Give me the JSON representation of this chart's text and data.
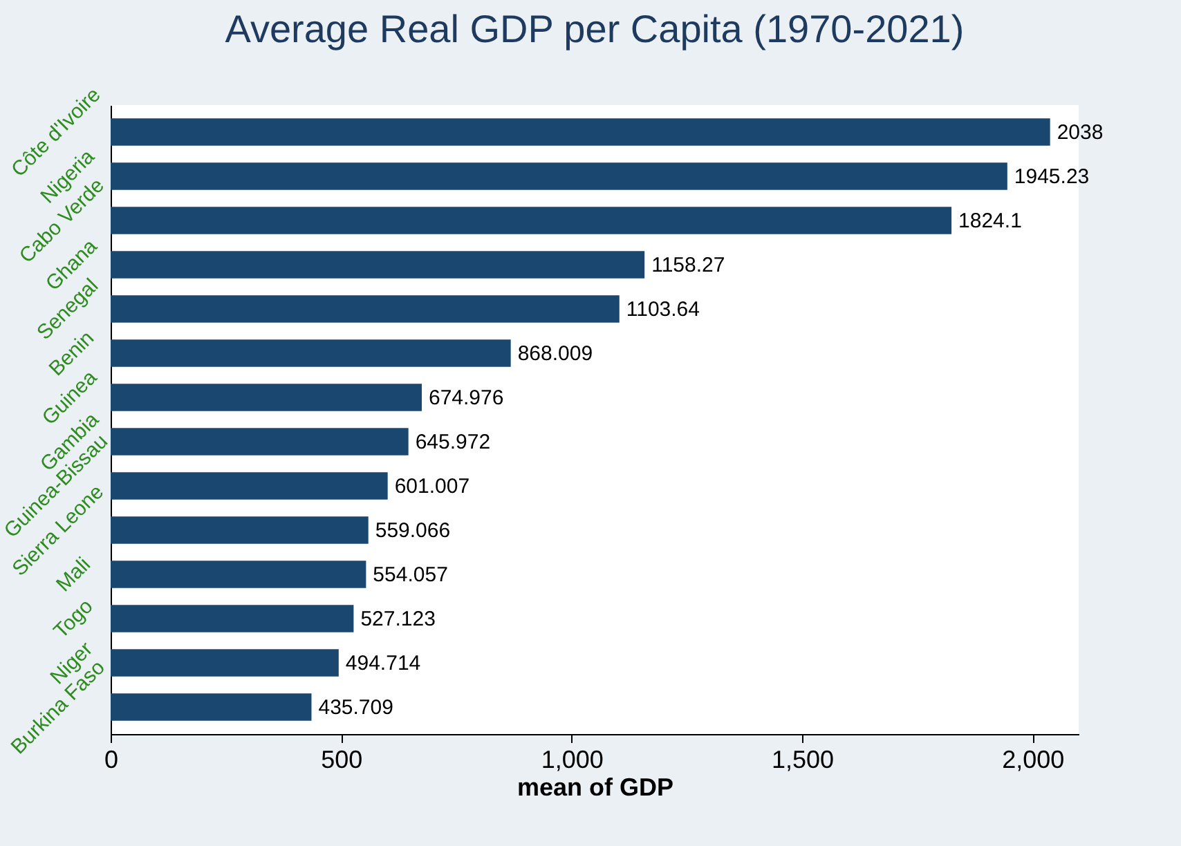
{
  "chart_data": {
    "type": "bar",
    "orientation": "horizontal",
    "title": "Average Real GDP per Capita (1970-2021)",
    "xlabel": "mean of GDP",
    "categories": [
      "Côte d'Ivoire",
      "Nigeria",
      "Cabo Verde",
      "Ghana",
      "Senegal",
      "Benin",
      "Guinea",
      "Gambia",
      "Guinea-Bissau",
      "Sierra Leone",
      "Mali",
      "Togo",
      "Niger",
      "Burkina Faso"
    ],
    "values": [
      2038,
      1945.23,
      1824.1,
      1158.27,
      1103.64,
      868.009,
      674.976,
      645.972,
      601.007,
      559.066,
      554.057,
      527.123,
      494.714,
      435.709
    ],
    "color": "#1a476f",
    "data_labels": true,
    "grid": false,
    "xlim": [
      0,
      2100
    ],
    "xticks": [
      0,
      500,
      {
        "value": 1000,
        "label": "1,000"
      },
      {
        "value": 1500,
        "label": "1,500"
      },
      {
        "value": 2000,
        "label": "2,000"
      }
    ]
  }
}
